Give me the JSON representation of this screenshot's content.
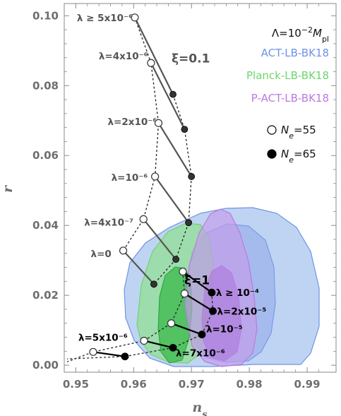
{
  "chart_data": {
    "type": "scatter",
    "title": "",
    "xlabel": "n",
    "xlabel_sub": "s",
    "ylabel": "r",
    "xlim": [
      0.948,
      0.995
    ],
    "ylim": [
      -0.002,
      0.1035
    ],
    "x_ticks": [
      0.95,
      0.96,
      0.97,
      0.98,
      0.99
    ],
    "x_tick_labels": [
      "0.95",
      "0.96",
      "0.97",
      "0.98",
      "0.99"
    ],
    "y_ticks": [
      0.0,
      0.02,
      0.04,
      0.06,
      0.08,
      0.1
    ],
    "y_tick_labels": [
      "0.00",
      "0.02",
      "0.04",
      "0.06",
      "0.08",
      "0.10"
    ],
    "grid": false,
    "legend_position": "top-right",
    "constant": {
      "text": "Λ=10",
      "sup": "−2",
      "tail": "M",
      "sub": "pl"
    },
    "contours": [
      {
        "name": "ACT-LB-BK18",
        "color": "#6f93e6",
        "fill": "#a9c6ee",
        "fill_inner": "#8fa6ea"
      },
      {
        "name": "Planck-LB-BK18",
        "color": "#6fd46f",
        "fill": "#8fe08f",
        "fill_inner": "#39b94a"
      },
      {
        "name": "P-ACT-LB-BK18",
        "color": "#bb7ae0",
        "fill": "#c49bea",
        "fill_inner": "#ab73d8"
      }
    ],
    "markers": [
      {
        "label_main": "N",
        "label_sub": "e",
        "label_tail": "=55",
        "style": "open"
      },
      {
        "label_main": "N",
        "label_sub": "e",
        "label_tail": "=65",
        "style": "filled"
      }
    ],
    "series": [
      {
        "name": "ξ=0.1",
        "color": "#555555",
        "points": [
          {
            "lambda": "λ ≥ 5x10⁻⁶",
            "ns_55": 0.9602,
            "r_55": 0.0995,
            "ns_65": 0.9668,
            "r_65": 0.0775
          },
          {
            "lambda": "λ=4x10⁻⁶",
            "ns_55": 0.963,
            "r_55": 0.0865,
            "ns_65": 0.9688,
            "r_65": 0.0675
          },
          {
            "lambda": "λ=2x10⁻⁶",
            "ns_55": 0.9643,
            "r_55": 0.0693,
            "ns_65": 0.97,
            "r_65": 0.054
          },
          {
            "lambda": "λ=10⁻⁶",
            "ns_55": 0.9637,
            "r_55": 0.054,
            "ns_65": 0.9695,
            "r_65": 0.0408
          },
          {
            "lambda": "λ=4x10⁻⁷",
            "ns_55": 0.9617,
            "r_55": 0.0418,
            "ns_65": 0.9673,
            "r_65": 0.0303
          },
          {
            "lambda": "λ=0",
            "ns_55": 0.9582,
            "r_55": 0.0328,
            "ns_65": 0.9635,
            "r_65": 0.0232
          }
        ]
      },
      {
        "name": "ξ=1",
        "color": "#000000",
        "points": [
          {
            "lambda": "λ ≥ 10⁻⁴",
            "ns_55": 0.9685,
            "r_55": 0.0268,
            "ns_65": 0.9735,
            "r_65": 0.0208
          },
          {
            "lambda": "λ=2x10⁻⁵",
            "ns_55": 0.9688,
            "r_55": 0.0205,
            "ns_65": 0.9737,
            "r_65": 0.0155
          },
          {
            "lambda": "λ=10⁻⁵",
            "ns_55": 0.9665,
            "r_55": 0.012,
            "ns_65": 0.9718,
            "r_65": 0.0088
          },
          {
            "lambda": "λ=7x10⁻⁶",
            "ns_55": 0.9618,
            "r_55": 0.007,
            "ns_65": 0.9668,
            "r_65": 0.005
          },
          {
            "lambda": "λ=5x10⁻⁶",
            "ns_55": 0.953,
            "r_55": 0.0038,
            "ns_65": 0.9585,
            "r_65": 0.0025
          }
        ]
      }
    ]
  }
}
